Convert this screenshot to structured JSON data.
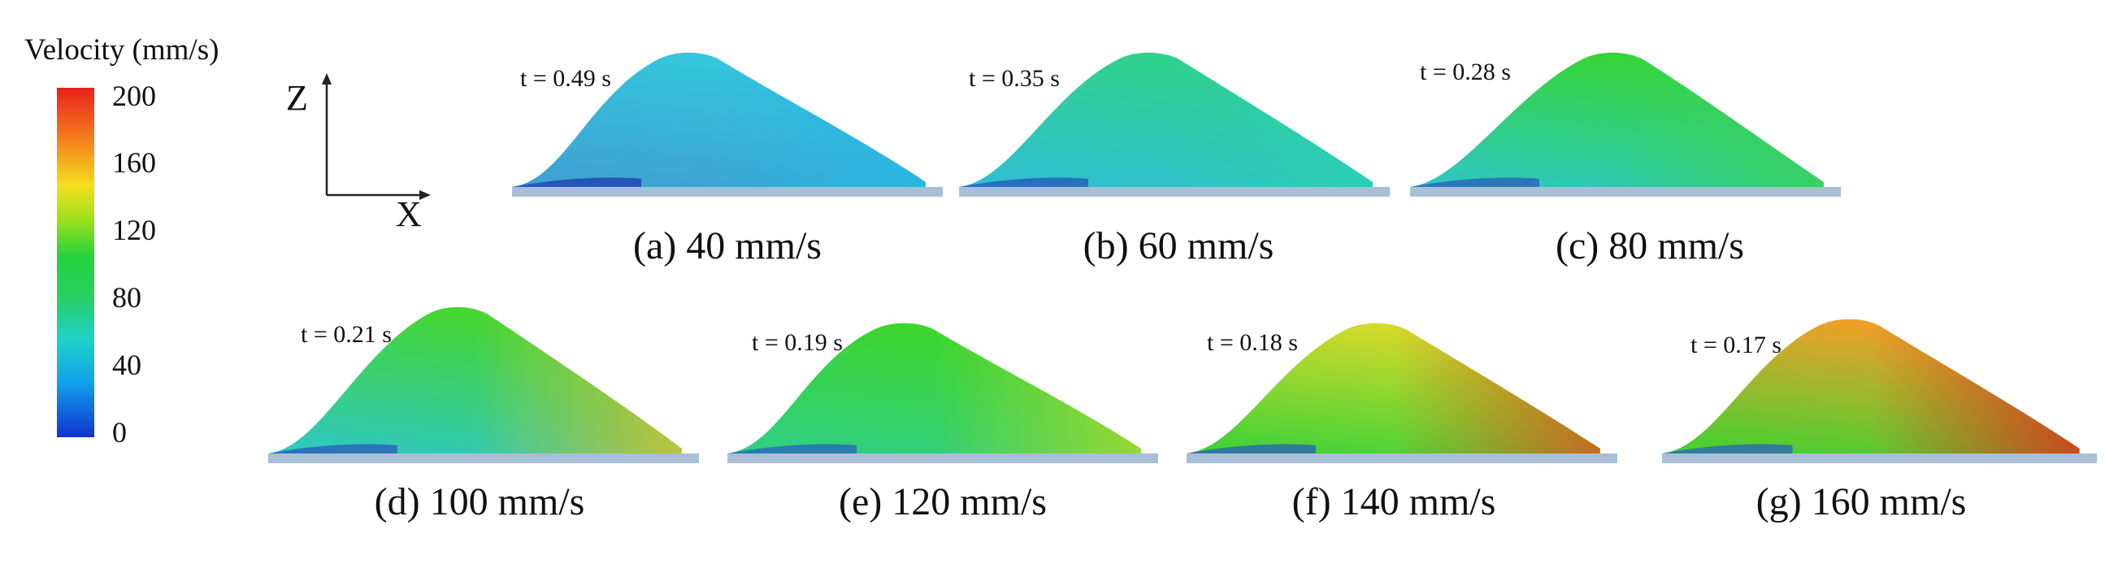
{
  "legend": {
    "title": "Velocity (mm/s)",
    "ticks": [
      "200",
      "160",
      "120",
      "80",
      "40",
      "0"
    ],
    "colors": [
      "#e8201a",
      "#f47a1c",
      "#f4e01c",
      "#28d23c",
      "#1fd2c8",
      "#12a4ea",
      "#1033d0"
    ]
  },
  "axes": {
    "z_label": "Z",
    "x_label": "X"
  },
  "panels": [
    {
      "time": "t = 0.49 s",
      "caption": "(a) 40 mm/s",
      "base_color": "#3f9fd2",
      "top_color": "#33c6dc",
      "edge_color": "#27b8e2",
      "dark_color": "#1c3ea8"
    },
    {
      "time": "t = 0.35 s",
      "caption": "(b) 60 mm/s",
      "base_color": "#31bed6",
      "top_color": "#2fd28a",
      "edge_color": "#2bd0b2",
      "dark_color": "#2356b8"
    },
    {
      "time": "t = 0.28 s",
      "caption": "(c) 80 mm/s",
      "base_color": "#2cc7c4",
      "top_color": "#36d43a",
      "edge_color": "#3ad25a",
      "dark_color": "#2a5cbc"
    },
    {
      "time": "t = 0.21 s",
      "caption": "(d) 100 mm/s",
      "base_color": "#2ec8c6",
      "top_color": "#45d630",
      "edge_color": "#d6c02a",
      "dark_color": "#2a58b8"
    },
    {
      "time": "t = 0.19 s",
      "caption": "(e) 120 mm/s",
      "base_color": "#2fcf86",
      "top_color": "#3cd52c",
      "edge_color": "#a8d828",
      "dark_color": "#2760bc"
    },
    {
      "time": "t = 0.18 s",
      "caption": "(f) 140 mm/s",
      "base_color": "#36d238",
      "top_color": "#d3da2a",
      "edge_color": "#d45a1c",
      "dark_color": "#2a5cbc"
    },
    {
      "time": "t = 0.17 s",
      "caption": "(g) 160 mm/s",
      "base_color": "#3bd432",
      "top_color": "#eea028",
      "edge_color": "#d8341a",
      "dark_color": "#2a60bc"
    }
  ]
}
